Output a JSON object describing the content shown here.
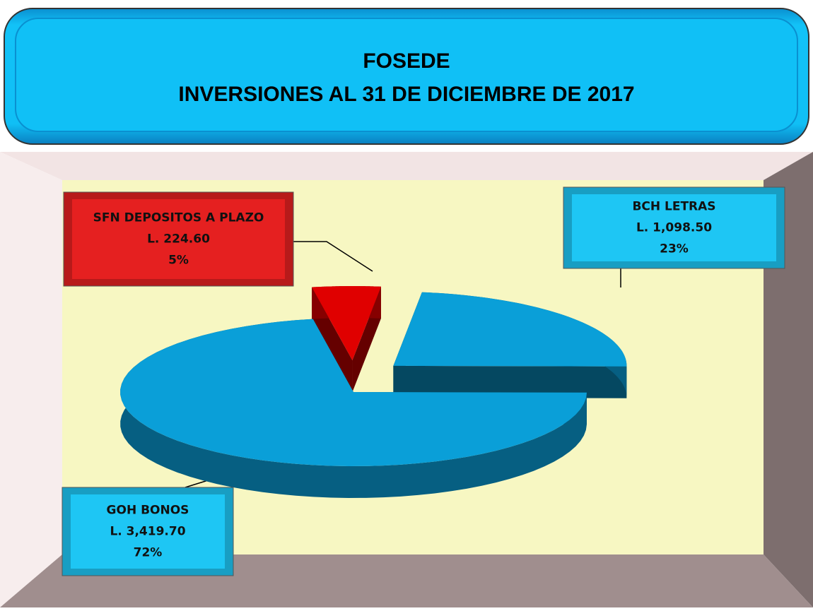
{
  "chart_data": {
    "type": "pie3d",
    "title": "FOSEDE",
    "subtitle": "INVERSIONES AL 31 DE DICIEMBRE DE 2017",
    "categories": [
      "SFN DEPOSITOS A PLAZO",
      "BCH LETRAS",
      "GOH BONOS"
    ],
    "values": [
      224.6,
      1098.5,
      3419.7
    ],
    "value_labels": [
      "L. 224.60",
      "L. 1,098.50",
      "L. 3,419.70"
    ],
    "percentages": [
      5,
      23,
      72
    ],
    "percentage_labels": [
      "5%",
      "23%",
      "72%"
    ],
    "colors": [
      "#e00000",
      "#0a9fd8",
      "#0a9fd8"
    ]
  }
}
